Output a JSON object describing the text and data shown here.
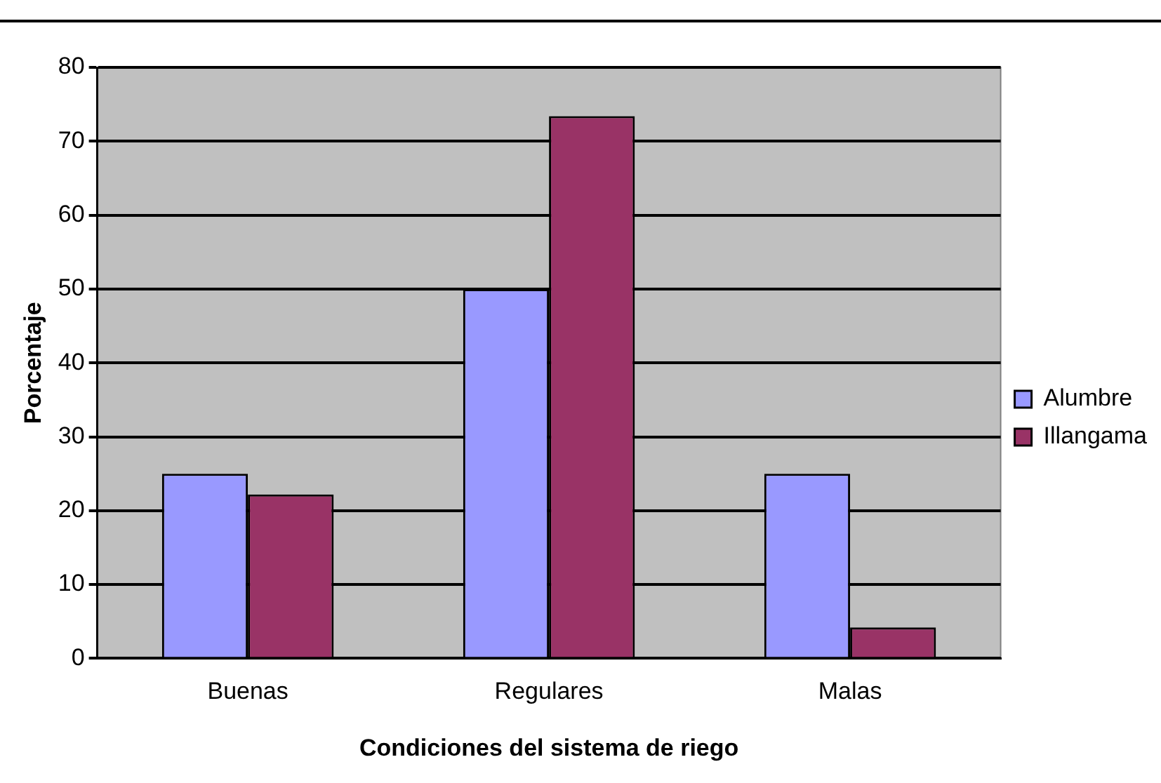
{
  "chart_data": {
    "type": "bar",
    "xlabel": "Condiciones del sistema de riego",
    "ylabel": "Porcentaje",
    "categories": [
      "Buenas",
      "Regulares",
      "Malas"
    ],
    "series": [
      {
        "name": "Alumbre",
        "color": "#9999ff",
        "values": [
          25,
          50,
          25
        ]
      },
      {
        "name": "Illangama",
        "color": "#993366",
        "values": [
          22.2,
          73.4,
          4.2
        ]
      }
    ],
    "ylim": [
      0,
      80
    ],
    "yticks": [
      0,
      10,
      20,
      30,
      40,
      50,
      60,
      70,
      80
    ],
    "grid": "y",
    "legend": "right"
  }
}
